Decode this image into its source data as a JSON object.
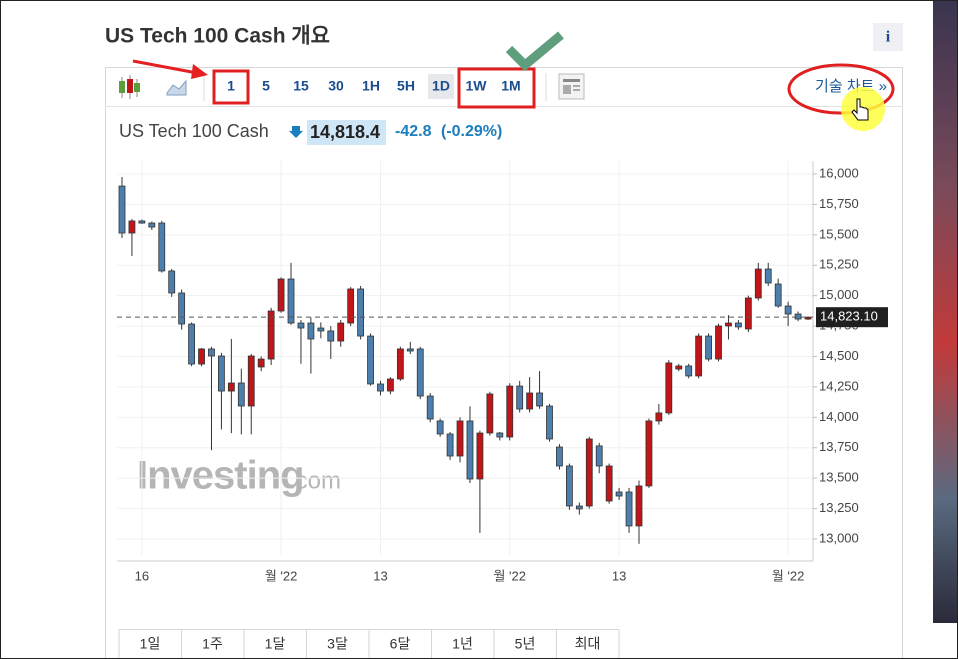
{
  "header": {
    "title": "US Tech 100 Cash 개요",
    "info": "i"
  },
  "toolbar": {
    "intervals": [
      "1",
      "5",
      "15",
      "30",
      "1H",
      "5H",
      "1D",
      "1W",
      "1M"
    ],
    "technical_chart": "기술 차트 »"
  },
  "quote": {
    "name": "US Tech 100 Cash",
    "price": "14,818.4",
    "change": "-42.8",
    "change_percent": "(-0.29%)"
  },
  "watermark": {
    "brand": "Investing",
    "suffix": ".com"
  },
  "ranges": [
    "1일",
    "1주",
    "1달",
    "3달",
    "6달",
    "1년",
    "5년",
    "최대"
  ],
  "chart_data": {
    "type": "candlestick",
    "up_color": "#c0161a",
    "down_color": "#4d7fae",
    "grid": true,
    "ylim": [
      12860,
      16107
    ],
    "yticks": [
      {
        "value": 13000,
        "label": "13,000"
      },
      {
        "value": 13250,
        "label": "13,250"
      },
      {
        "value": 13500,
        "label": "13,500"
      },
      {
        "value": 13750,
        "label": "13,750"
      },
      {
        "value": 14000,
        "label": "14,000"
      },
      {
        "value": 14250,
        "label": "14,250"
      },
      {
        "value": 14500,
        "label": "14,500"
      },
      {
        "value": 14750,
        "label": "14,750"
      },
      {
        "value": 15000,
        "label": "15,000"
      },
      {
        "value": 15250,
        "label": "15,250"
      },
      {
        "value": 15500,
        "label": "15,500"
      },
      {
        "value": 15750,
        "label": "15,750"
      },
      {
        "value": 16000,
        "label": "16,000"
      }
    ],
    "last_price": {
      "value": 14823.1,
      "label": "14,823.10"
    },
    "categories": [
      null,
      null,
      "16",
      null,
      null,
      null,
      null,
      null,
      null,
      null,
      null,
      null,
      null,
      null,
      null,
      null,
      "월 '22",
      null,
      null,
      null,
      null,
      null,
      null,
      null,
      null,
      null,
      "13",
      null,
      null,
      null,
      null,
      null,
      null,
      null,
      null,
      null,
      null,
      null,
      null,
      "월 '22",
      null,
      null,
      null,
      null,
      null,
      null,
      null,
      null,
      null,
      null,
      "13",
      null,
      null,
      null,
      null,
      null,
      null,
      null,
      null,
      null,
      null,
      null,
      null,
      null,
      null,
      null,
      null,
      "월 '22",
      null,
      null
    ],
    "open": [
      15901,
      15515,
      15614,
      15597,
      15597,
      15203,
      15022,
      14767,
      14438,
      14562,
      14504,
      14216,
      14282,
      14093,
      14414,
      14479,
      14874,
      15137,
      14775,
      14775,
      14734,
      14710,
      14627,
      14775,
      15055,
      14668,
      14274,
      14216,
      14315,
      14562,
      14562,
      14175,
      13970,
      13863,
      13682,
      13970,
      13493,
      13871,
      13871,
      13838,
      14257,
      14068,
      14200,
      14093,
      13756,
      13600,
      13271,
      13271,
      13765,
      13312,
      13386,
      13386,
      13107,
      13436,
      13970,
      14036,
      14397,
      14422,
      14340,
      14668,
      14479,
      14751,
      14775,
      14726,
      14981,
      15219,
      15096,
      14915,
      14849,
      14808
    ],
    "high": [
      15975,
      15630,
      15625,
      15610,
      15615,
      15220,
      15050,
      14780,
      14570,
      14580,
      14530,
      14644,
      14400,
      14520,
      14500,
      14900,
      15150,
      15270,
      14800,
      14820,
      14780,
      14750,
      14800,
      15070,
      15080,
      14690,
      14300,
      14330,
      14580,
      14620,
      14580,
      14200,
      13990,
      13880,
      14000,
      14090,
      13890,
      14210,
      13880,
      14280,
      14300,
      14330,
      14380,
      14110,
      13780,
      13620,
      13300,
      13840,
      13790,
      13620,
      13420,
      13420,
      13480,
      13990,
      14110,
      14470,
      14440,
      14440,
      14690,
      14690,
      14770,
      14840,
      14800,
      15000,
      15270,
      15270,
      15140,
      14950,
      14870,
      14830
    ],
    "low": [
      15474,
      15326,
      15590,
      15540,
      15190,
      14990,
      14720,
      14420,
      14420,
      13730,
      13900,
      13870,
      13860,
      13860,
      14380,
      14430,
      14860,
      14760,
      14440,
      14360,
      14650,
      14480,
      14580,
      14750,
      14640,
      14260,
      14180,
      14190,
      14300,
      14520,
      14150,
      13960,
      13840,
      13650,
      13630,
      13460,
      13050,
      13850,
      13810,
      13810,
      14040,
      14040,
      14070,
      13800,
      13570,
      13240,
      13200,
      13250,
      13540,
      13290,
      13320,
      13050,
      12960,
      13420,
      13940,
      14020,
      14380,
      14320,
      14320,
      14460,
      14460,
      14640,
      14720,
      14700,
      14960,
      15080,
      14900,
      14750,
      14790,
      14800
    ],
    "close": [
      15515,
      15614,
      15597,
      15564,
      15203,
      15022,
      14767,
      14438,
      14562,
      14504,
      14216,
      14282,
      14093,
      14504,
      14479,
      14874,
      15137,
      14775,
      14734,
      14644,
      14710,
      14627,
      14775,
      15055,
      14668,
      14274,
      14216,
      14315,
      14562,
      14545,
      14175,
      13986,
      13863,
      13682,
      13970,
      13493,
      13871,
      14192,
      13838,
      14257,
      14068,
      14200,
      14093,
      13822,
      13600,
      13271,
      13247,
      13822,
      13600,
      13600,
      13353,
      13107,
      13436,
      13970,
      14036,
      14447,
      14422,
      14340,
      14668,
      14479,
      14751,
      14775,
      14743,
      14981,
      15219,
      15104,
      14915,
      14849,
      14808,
      14823
    ]
  }
}
